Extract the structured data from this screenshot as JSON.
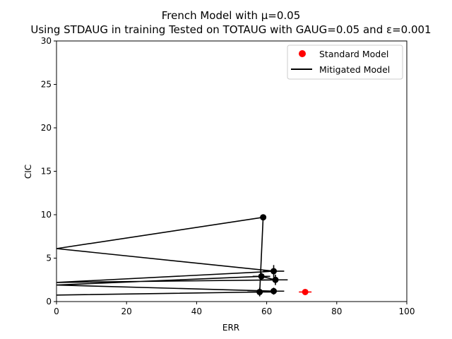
{
  "chart_data": {
    "type": "line",
    "title": "French Model with μ=0.05",
    "subtitle": "Using STDAUG in training Tested on TOTAUG with GAUG=0.05 and ε=0.001",
    "xlabel": "ERR",
    "ylabel": "CIC",
    "xlim": [
      0,
      100
    ],
    "ylim": [
      0,
      30
    ],
    "x_ticks": [
      "0",
      "20",
      "40",
      "60",
      "80",
      "100"
    ],
    "y_ticks": [
      "0",
      "5",
      "10",
      "15",
      "20",
      "25",
      "30"
    ],
    "grid": false,
    "legend_position": "top-right",
    "series": [
      {
        "name": "Standard Model",
        "kind": "scatter",
        "color": "#ff0000",
        "points": [
          {
            "x": 71.0,
            "y": 1.1,
            "xerr": 1.8,
            "yerr": 0.2
          }
        ]
      },
      {
        "name": "Mitigated Model",
        "kind": "line",
        "color": "#000000",
        "points": [
          {
            "x": 0.0,
            "y": 0.75
          },
          {
            "x": 58.0,
            "y": 1.1,
            "xerr": 3.5,
            "yerr": 0.5
          },
          {
            "x": 62.0,
            "y": 1.2,
            "xerr": 3.0,
            "yerr": 0.4
          },
          {
            "x": 0.0,
            "y": 1.9
          },
          {
            "x": 58.5,
            "y": 2.9,
            "xerr": 2.5,
            "yerr": 0.4
          },
          {
            "x": 62.5,
            "y": 2.5,
            "xerr": 3.5,
            "yerr": 0.6
          },
          {
            "x": 0.0,
            "y": 2.2
          },
          {
            "x": 58.0,
            "y": 3.4
          },
          {
            "x": 62.0,
            "y": 3.5,
            "xerr": 3.0,
            "yerr": 0.7
          },
          {
            "x": 0.0,
            "y": 6.1
          },
          {
            "x": 59.0,
            "y": 9.7
          },
          {
            "x": 58.0,
            "y": 1.0
          }
        ]
      }
    ]
  }
}
